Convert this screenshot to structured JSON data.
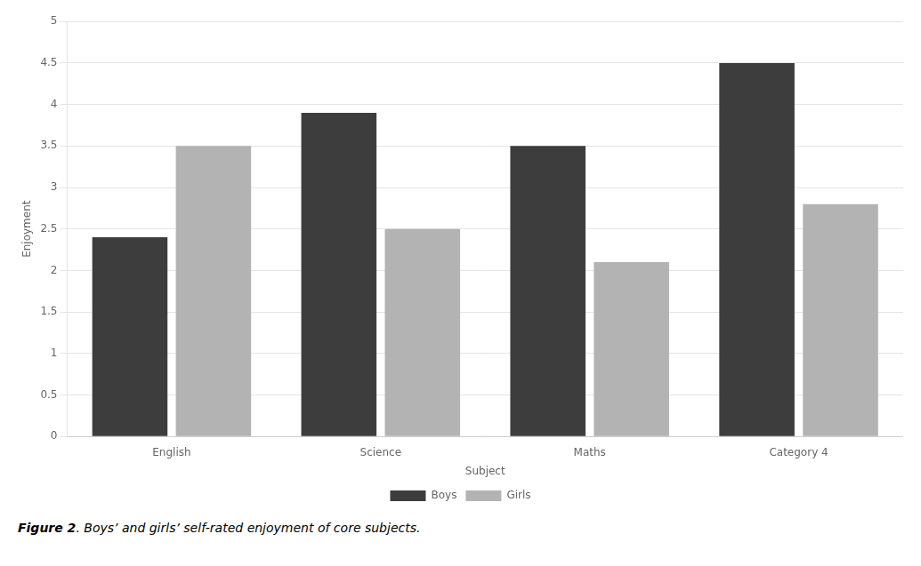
{
  "chart_data": {
    "type": "bar",
    "x_label": "Subject",
    "y_label": "Enjoyment",
    "categories": [
      "English",
      "Science",
      "Maths",
      "Category 4"
    ],
    "series": [
      {
        "name": "Boys",
        "color": "#3d3d3d",
        "values": [
          2.4,
          3.9,
          3.5,
          4.5
        ]
      },
      {
        "name": "Girls",
        "color": "#b3b3b3",
        "values": [
          3.5,
          2.5,
          2.1,
          2.8
        ]
      }
    ],
    "ylim": [
      0,
      5
    ],
    "yticks": [
      0,
      0.5,
      1,
      1.5,
      2,
      2.5,
      3,
      3.5,
      4,
      4.5,
      5
    ],
    "grid": true,
    "legend": "bottom",
    "annotations": [
      "Figure 2",
      ". Boys’ and girls’ self-rated enjoyment of core subjects."
    ]
  }
}
